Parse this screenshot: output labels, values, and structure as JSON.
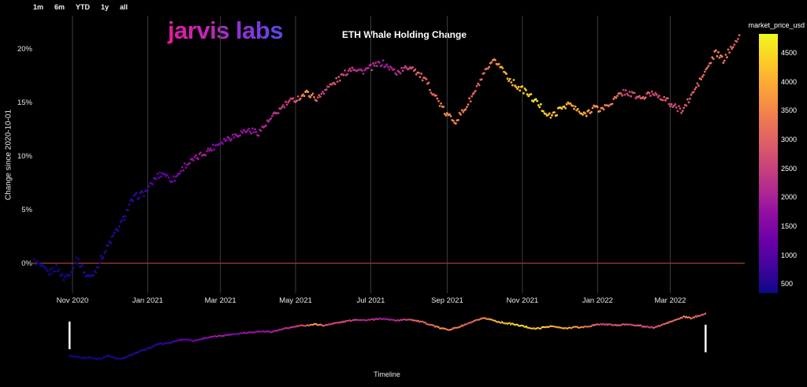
{
  "app": {
    "background": "#000000"
  },
  "toolbar": {
    "ranges": [
      "1m",
      "6m",
      "YTD",
      "1y",
      "all"
    ]
  },
  "header": {
    "logo": "jarvis labs",
    "logo_gradient": [
      "#f0168f",
      "#c526b8",
      "#8a35d6",
      "#4350ed"
    ],
    "title": "ETH Whale Holding Change"
  },
  "timeline": {
    "label": "Timeline",
    "handles_days": [
      0,
      572
    ]
  },
  "chart_data": {
    "type": "scatter",
    "title": "ETH Whale Holding Change",
    "ylabel": "Change since 2020-10-01",
    "timeline_label": "Timeline",
    "start_date": "2020-10-01",
    "x_range_days": [
      0,
      572
    ],
    "ylim": [
      -2.5,
      22
    ],
    "grid": true,
    "grid_color": "#3d3d3d",
    "tick_color": "#e6e6e6",
    "zero_line": {
      "value": 0,
      "color": "#8a372a"
    },
    "x_ticks": [
      {
        "label": "Nov 2020",
        "day": 31
      },
      {
        "label": "Jan 2021",
        "day": 92
      },
      {
        "label": "Mar 2021",
        "day": 151
      },
      {
        "label": "May 2021",
        "day": 212
      },
      {
        "label": "Jul 2021",
        "day": 273
      },
      {
        "label": "Sep 2021",
        "day": 335
      },
      {
        "label": "Nov 2021",
        "day": 396
      },
      {
        "label": "Jan 2022",
        "day": 457
      },
      {
        "label": "Mar 2022",
        "day": 516
      }
    ],
    "y_ticks": [
      {
        "label": "0%",
        "value": 0
      },
      {
        "label": "5%",
        "value": 5
      },
      {
        "label": "10%",
        "value": 10
      },
      {
        "label": "15%",
        "value": 15
      },
      {
        "label": "20%",
        "value": 20
      }
    ],
    "colorbar": {
      "label": "market_price_usd",
      "ticks": [
        500,
        1000,
        1500,
        2000,
        2500,
        3000,
        3500,
        4000,
        4500
      ],
      "domain": [
        340,
        4830
      ],
      "colormap": "plasma",
      "stops": [
        [
          0.0,
          "#0d0887"
        ],
        [
          0.1,
          "#41049d"
        ],
        [
          0.2,
          "#6a00a8"
        ],
        [
          0.3,
          "#8f0da4"
        ],
        [
          0.4,
          "#b12a90"
        ],
        [
          0.5,
          "#cc4778"
        ],
        [
          0.6,
          "#e16462"
        ],
        [
          0.7,
          "#f2844b"
        ],
        [
          0.8,
          "#fca636"
        ],
        [
          0.9,
          "#fcce25"
        ],
        [
          1.0,
          "#f0f921"
        ]
      ]
    },
    "series": [
      {
        "name": "whale_holding_change_pct",
        "format": "[day_since_2020-10-01, holding_change_pct, market_price_usd]",
        "anchors": [
          [
            0,
            0.2,
            360
          ],
          [
            6,
            -0.4,
            355
          ],
          [
            12,
            -0.9,
            370
          ],
          [
            18,
            -0.4,
            368
          ],
          [
            24,
            -1.4,
            375
          ],
          [
            30,
            -0.7,
            385
          ],
          [
            34,
            0.4,
            400
          ],
          [
            38,
            -0.2,
            440
          ],
          [
            42,
            -1.1,
            460
          ],
          [
            46,
            -1.3,
            480
          ],
          [
            50,
            -0.6,
            520
          ],
          [
            54,
            0.4,
            560
          ],
          [
            58,
            1.2,
            590
          ],
          [
            62,
            2.1,
            600
          ],
          [
            66,
            2.9,
            575
          ],
          [
            70,
            3.6,
            570
          ],
          [
            74,
            4.6,
            615
          ],
          [
            78,
            5.6,
            640
          ],
          [
            82,
            6.2,
            660
          ],
          [
            86,
            6.4,
            690
          ],
          [
            90,
            6.6,
            720
          ],
          [
            94,
            7.2,
            900
          ],
          [
            98,
            7.9,
            1150
          ],
          [
            102,
            8.3,
            1220
          ],
          [
            106,
            8.4,
            1230
          ],
          [
            110,
            7.8,
            1260
          ],
          [
            114,
            7.9,
            1380
          ],
          [
            118,
            8.5,
            1500
          ],
          [
            122,
            9.1,
            1630
          ],
          [
            126,
            9.4,
            1700
          ],
          [
            130,
            9.7,
            1780
          ],
          [
            134,
            10.0,
            1850
          ],
          [
            138,
            10.3,
            1930
          ],
          [
            142,
            10.6,
            1800
          ],
          [
            146,
            10.9,
            1570
          ],
          [
            150,
            11.2,
            1420
          ],
          [
            154,
            11.5,
            1540
          ],
          [
            158,
            11.7,
            1800
          ],
          [
            162,
            11.9,
            1820
          ],
          [
            166,
            12.1,
            1790
          ],
          [
            170,
            12.3,
            1760
          ],
          [
            174,
            12.4,
            1700
          ],
          [
            178,
            12.3,
            1820
          ],
          [
            182,
            12.2,
            1970
          ],
          [
            186,
            12.7,
            2000
          ],
          [
            190,
            13.2,
            2070
          ],
          [
            194,
            13.7,
            2200
          ],
          [
            198,
            14.2,
            2320
          ],
          [
            202,
            14.6,
            2340
          ],
          [
            206,
            15.0,
            2360
          ],
          [
            210,
            15.2,
            2700
          ],
          [
            214,
            15.4,
            2950
          ],
          [
            218,
            15.7,
            3500
          ],
          [
            222,
            15.9,
            3920
          ],
          [
            226,
            15.6,
            3450
          ],
          [
            230,
            15.3,
            2800
          ],
          [
            234,
            16.0,
            2400
          ],
          [
            238,
            16.4,
            2550
          ],
          [
            242,
            16.7,
            2710
          ],
          [
            246,
            17.1,
            2600
          ],
          [
            250,
            17.5,
            2510
          ],
          [
            254,
            17.9,
            2440
          ],
          [
            258,
            18.3,
            2370
          ],
          [
            262,
            18.1,
            2150
          ],
          [
            266,
            17.9,
            1970
          ],
          [
            270,
            18.1,
            2120
          ],
          [
            274,
            18.3,
            2270
          ],
          [
            278,
            18.5,
            2100
          ],
          [
            282,
            18.7,
            1900
          ],
          [
            286,
            18.4,
            1950
          ],
          [
            290,
            18.1,
            2000
          ],
          [
            294,
            17.8,
            2190
          ],
          [
            298,
            18.0,
            2300
          ],
          [
            302,
            18.2,
            2450
          ],
          [
            306,
            18.4,
            2600
          ],
          [
            310,
            17.9,
            3000
          ],
          [
            314,
            17.4,
            3160
          ],
          [
            318,
            16.9,
            3080
          ],
          [
            322,
            16.2,
            3010
          ],
          [
            326,
            15.5,
            3150
          ],
          [
            330,
            14.7,
            3230
          ],
          [
            334,
            13.9,
            3700
          ],
          [
            338,
            13.6,
            3650
          ],
          [
            342,
            13.3,
            3420
          ],
          [
            346,
            13.9,
            3370
          ],
          [
            350,
            14.5,
            3330
          ],
          [
            354,
            15.3,
            3130
          ],
          [
            358,
            16.1,
            2930
          ],
          [
            362,
            17.0,
            2960
          ],
          [
            366,
            17.8,
            3000
          ],
          [
            370,
            18.4,
            3400
          ],
          [
            374,
            18.9,
            3580
          ],
          [
            378,
            18.4,
            3850
          ],
          [
            382,
            17.8,
            4000
          ],
          [
            386,
            17.1,
            4170
          ],
          [
            390,
            16.7,
            4230
          ],
          [
            394,
            16.3,
            4290
          ],
          [
            398,
            16.1,
            4320
          ],
          [
            402,
            15.6,
            4520
          ],
          [
            406,
            15.2,
            4730
          ],
          [
            410,
            14.7,
            4500
          ],
          [
            414,
            14.2,
            4280
          ],
          [
            418,
            13.7,
            4150
          ],
          [
            422,
            13.9,
            4250
          ],
          [
            426,
            14.3,
            4450
          ],
          [
            430,
            14.7,
            4300
          ],
          [
            434,
            14.9,
            3900
          ],
          [
            438,
            14.5,
            3930
          ],
          [
            442,
            14.1,
            3960
          ],
          [
            446,
            13.8,
            4000
          ],
          [
            450,
            14.2,
            3850
          ],
          [
            454,
            14.6,
            3680
          ],
          [
            458,
            14.3,
            3770
          ],
          [
            462,
            14.5,
            3450
          ],
          [
            466,
            14.8,
            3150
          ],
          [
            470,
            15.2,
            3250
          ],
          [
            474,
            15.6,
            3330
          ],
          [
            478,
            16.0,
            2430
          ],
          [
            482,
            15.9,
            2550
          ],
          [
            486,
            15.7,
            2690
          ],
          [
            490,
            15.5,
            2880
          ],
          [
            494,
            15.4,
            3060
          ],
          [
            498,
            15.7,
            2850
          ],
          [
            502,
            15.9,
            2630
          ],
          [
            506,
            15.7,
            2620
          ],
          [
            510,
            15.4,
            2750
          ],
          [
            514,
            15.1,
            2920
          ],
          [
            518,
            14.7,
            2750
          ],
          [
            522,
            14.4,
            2560
          ],
          [
            526,
            14.3,
            2700
          ],
          [
            530,
            15.0,
            2850
          ],
          [
            534,
            15.8,
            2950
          ],
          [
            538,
            16.6,
            3030
          ],
          [
            542,
            17.4,
            3110
          ],
          [
            546,
            18.2,
            3200
          ],
          [
            550,
            19.0,
            3280
          ],
          [
            553,
            19.7,
            3450
          ],
          [
            556,
            19.3,
            3520
          ],
          [
            559,
            18.9,
            3240
          ],
          [
            562,
            19.4,
            3060
          ],
          [
            565,
            20.1,
            3010
          ],
          [
            568,
            20.6,
            2940
          ],
          [
            572,
            21.0,
            3020
          ]
        ]
      }
    ]
  }
}
